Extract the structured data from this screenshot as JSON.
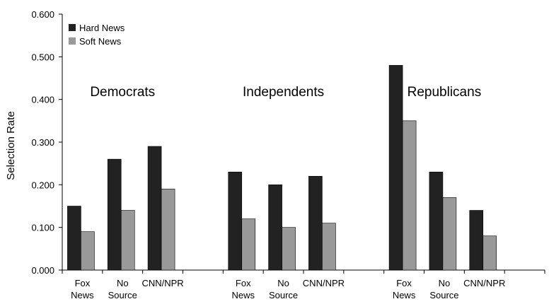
{
  "chart_data": {
    "type": "bar",
    "title": "",
    "xlabel": "",
    "ylabel": "Selection Rate",
    "ylim": [
      0,
      0.6
    ],
    "yticks": [
      "0.000",
      "0.100",
      "0.200",
      "0.300",
      "0.400",
      "0.500",
      "0.600"
    ],
    "grid": false,
    "legend_position": "top-left",
    "groups": [
      "Democrats",
      "Independents",
      "Republicans"
    ],
    "categories": [
      "Fox News",
      "No Source",
      "CNN/NPR"
    ],
    "category_lines": [
      [
        "Fox",
        "News"
      ],
      [
        "No",
        "Source"
      ],
      [
        "CNN/NPR"
      ]
    ],
    "series": [
      {
        "name": "Hard News",
        "color": "#222222",
        "values": [
          [
            0.15,
            0.26,
            0.29
          ],
          [
            0.23,
            0.2,
            0.22
          ],
          [
            0.48,
            0.23,
            0.14
          ]
        ]
      },
      {
        "name": "Soft News",
        "color": "#999999",
        "values": [
          [
            0.09,
            0.14,
            0.19
          ],
          [
            0.12,
            0.1,
            0.11
          ],
          [
            0.35,
            0.17,
            0.08
          ]
        ]
      }
    ]
  }
}
